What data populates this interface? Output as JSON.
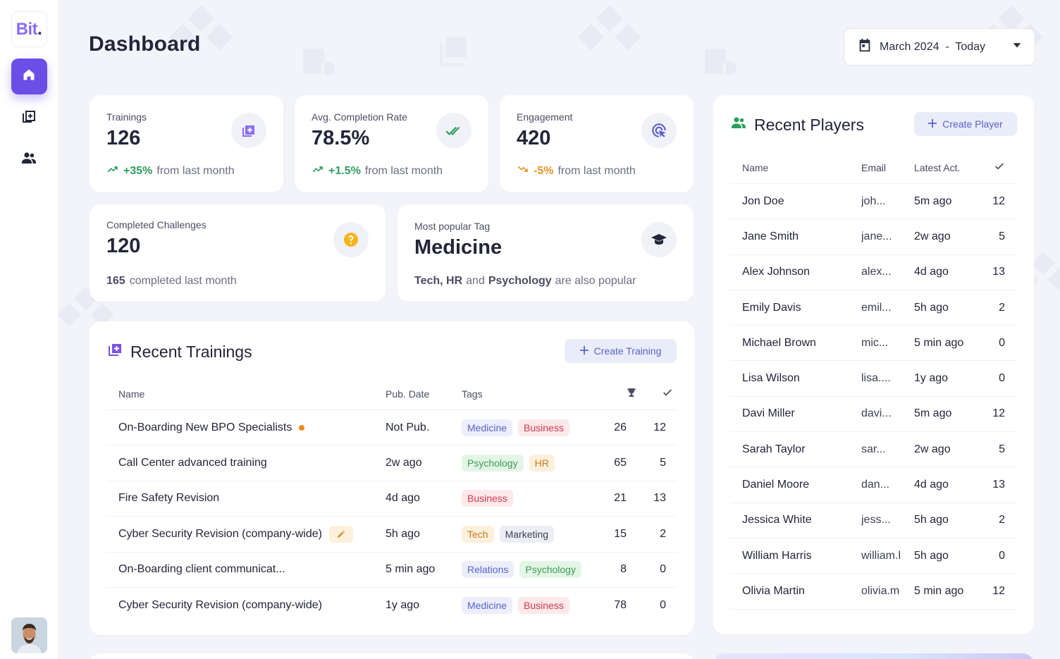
{
  "app": {
    "logo_main": "Bit",
    "logo_dot": "."
  },
  "sidebar": {
    "items": [
      {
        "icon": "home-icon",
        "active": true
      },
      {
        "icon": "trainings-icon",
        "active": false
      },
      {
        "icon": "users-icon",
        "active": false
      }
    ]
  },
  "header": {
    "title": "Dashboard",
    "date_range": "March 2024  -  Today"
  },
  "stats": {
    "trainings": {
      "label": "Trainings",
      "value": "126",
      "change": "+35%",
      "suffix": "from last month"
    },
    "completion": {
      "label": "Avg. Completion Rate",
      "value": "78.5%",
      "change": "+1.5%",
      "suffix": "from last month"
    },
    "engagement": {
      "label": "Engagement",
      "value": "420",
      "change": "-5%",
      "suffix": "from last month"
    },
    "challenges": {
      "label": "Completed Challenges",
      "value": "120",
      "count": "165",
      "suffix": "completed last month"
    },
    "popular_tag": {
      "label": "Most popular Tag",
      "value": "Medicine",
      "also_1": "Tech, HR",
      "and": "and",
      "also_2": "Psychology",
      "suffix": "are also popular"
    }
  },
  "recent_trainings": {
    "title": "Recent Trainings",
    "create_label": "Create Training",
    "columns": {
      "name": "Name",
      "date": "Pub. Date",
      "tags": "Tags"
    },
    "rows": [
      {
        "name": "On-Boarding New BPO Specialists",
        "date": "Not Pub.",
        "tags": [
          "Medicine",
          "Business"
        ],
        "score": "26",
        "done": "12",
        "marker": "dot"
      },
      {
        "name": "Call Center advanced training",
        "date": "2w ago",
        "tags": [
          "Psychology",
          "HR"
        ],
        "score": "65",
        "done": "5",
        "marker": ""
      },
      {
        "name": "Fire Safety Revision",
        "date": "4d ago",
        "tags": [
          "Business"
        ],
        "score": "21",
        "done": "13",
        "marker": ""
      },
      {
        "name": "Cyber Security Revision (company-wide)",
        "date": "5h ago",
        "tags": [
          "Tech",
          "Marketing"
        ],
        "score": "15",
        "done": "2",
        "marker": "edit"
      },
      {
        "name": "On-Boarding client communicat...",
        "date": "5 min ago",
        "tags": [
          "Relations",
          "Psychology"
        ],
        "score": "8",
        "done": "0",
        "marker": ""
      },
      {
        "name": "Cyber Security Revision (company-wide)",
        "date": "1y ago",
        "tags": [
          "Medicine",
          "Business"
        ],
        "score": "78",
        "done": "0",
        "marker": ""
      }
    ]
  },
  "recent_players": {
    "title": "Recent Players",
    "create_label": "Create Player",
    "columns": {
      "name": "Name",
      "email": "Email",
      "activity": "Latest Act."
    },
    "rows": [
      {
        "name": "Jon Doe",
        "email": "joh...",
        "activity": "5m ago",
        "count": "12"
      },
      {
        "name": "Jane Smith",
        "email": "jane...",
        "activity": "2w ago",
        "count": "5"
      },
      {
        "name": "Alex Johnson",
        "email": "alex...",
        "activity": "4d ago",
        "count": "13"
      },
      {
        "name": "Emily Davis",
        "email": "emil...",
        "activity": "5h ago",
        "count": "2"
      },
      {
        "name": "Michael Brown",
        "email": "mic...",
        "activity": "5 min ago",
        "count": "0"
      },
      {
        "name": "Lisa Wilson",
        "email": "lisa....",
        "activity": "1y ago",
        "count": "0"
      },
      {
        "name": "Davi Miller",
        "email": "davi...",
        "activity": "5m ago",
        "count": "12"
      },
      {
        "name": "Sarah Taylor",
        "email": "sar...",
        "activity": "2w ago",
        "count": "5"
      },
      {
        "name": "Daniel Moore",
        "email": "dan...",
        "activity": "4d ago",
        "count": "13"
      },
      {
        "name": "Jessica White",
        "email": "jess...",
        "activity": "5h ago",
        "count": "2"
      },
      {
        "name": "William Harris",
        "email": "william.l",
        "activity": "5h ago",
        "count": "0"
      },
      {
        "name": "Olivia Martin",
        "email": "olivia.m",
        "activity": "5 min ago",
        "count": "12"
      }
    ]
  },
  "colors": {
    "accent": "#6a4ee6",
    "positive": "#2e9e5e",
    "warning": "#e6942a",
    "background": "#f3f4fa"
  }
}
